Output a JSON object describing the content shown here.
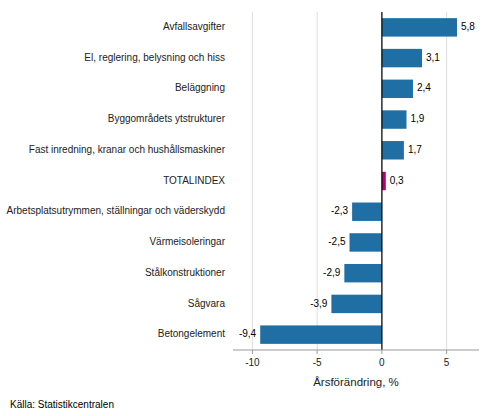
{
  "chart_data": {
    "type": "bar",
    "orientation": "horizontal",
    "categories": [
      "Betongelement",
      "Sågvara",
      "Stålkonstruktioner",
      "Värmeisoleringar",
      "Arbetsplatsutrymmen, ställningar och väderskydd",
      "TOTALINDEX",
      "Fast inredning, kranar och hushållsmaskiner",
      "Byggområdets ytstrukturer",
      "Beläggning",
      "El, reglering, belysning och hiss",
      "Avfallsavgifter"
    ],
    "values": [
      -9.4,
      -3.9,
      -2.9,
      -2.5,
      -2.3,
      0.3,
      1.7,
      1.9,
      2.4,
      3.1,
      5.8
    ],
    "value_labels": [
      "-9,4",
      "-3,9",
      "-2,9",
      "-2,5",
      "-2,3",
      "0,3",
      "1,7",
      "1,9",
      "2,4",
      "3,1",
      "5,8"
    ],
    "data_labels": true,
    "colors": [
      "#1f6fa5",
      "#1f6fa5",
      "#1f6fa5",
      "#1f6fa5",
      "#1f6fa5",
      "#b5006e",
      "#1f6fa5",
      "#1f6fa5",
      "#1f6fa5",
      "#1f6fa5",
      "#1f6fa5"
    ],
    "x_label": "Årsförändring, %",
    "xlim": [
      -11.5,
      7.5
    ],
    "xticks": [
      -10,
      -5,
      0,
      5
    ],
    "grid": true,
    "annotations": [
      "Källa: Statistikcentralen"
    ]
  }
}
